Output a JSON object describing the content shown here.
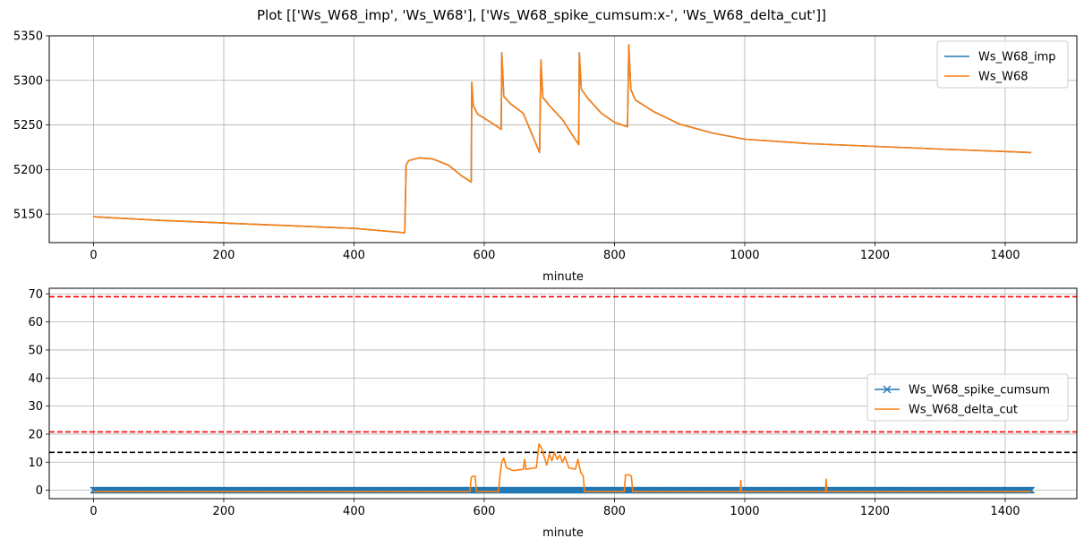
{
  "figure_title": "Plot [['Ws_W68_imp', 'Ws_W68'], ['Ws_W68_spike_cumsum:x-', 'Ws_W68_delta_cut']]",
  "chart_data": [
    {
      "type": "line",
      "xlabel": "minute",
      "ylabel": "",
      "xlim": [
        -68,
        1510
      ],
      "ylim": [
        5118,
        5350
      ],
      "xticks": [
        0,
        200,
        400,
        600,
        800,
        1000,
        1200,
        1400
      ],
      "yticks": [
        5150,
        5200,
        5250,
        5300,
        5350
      ],
      "grid": true,
      "legend_position": "top-right",
      "series": [
        {
          "name": "Ws_W68_imp",
          "color": "#1f77b4",
          "points": [
            [
              0,
              5147
            ],
            [
              100,
              5143
            ],
            [
              200,
              5140
            ],
            [
              300,
              5137
            ],
            [
              400,
              5134
            ],
            [
              478,
              5129
            ],
            [
              480,
              5205
            ],
            [
              484,
              5210
            ],
            [
              500,
              5213
            ],
            [
              520,
              5212
            ],
            [
              545,
              5205
            ],
            [
              565,
              5193
            ],
            [
              578,
              5187
            ],
            [
              580,
              5186
            ],
            [
              581,
              5298
            ],
            [
              583,
              5272
            ],
            [
              590,
              5262
            ],
            [
              610,
              5253
            ],
            [
              626,
              5245
            ],
            [
              627,
              5331
            ],
            [
              630,
              5282
            ],
            [
              640,
              5274
            ],
            [
              660,
              5263
            ],
            [
              685,
              5219
            ],
            [
              687,
              5323
            ],
            [
              690,
              5281
            ],
            [
              700,
              5272
            ],
            [
              720,
              5256
            ],
            [
              745,
              5228
            ],
            [
              746,
              5331
            ],
            [
              749,
              5290
            ],
            [
              760,
              5279
            ],
            [
              780,
              5263
            ],
            [
              800,
              5253
            ],
            [
              820,
              5248
            ],
            [
              822,
              5340
            ],
            [
              825,
              5290
            ],
            [
              832,
              5278
            ],
            [
              860,
              5265
            ],
            [
              900,
              5251
            ],
            [
              950,
              5241
            ],
            [
              1000,
              5234
            ],
            [
              1100,
              5229
            ],
            [
              1200,
              5226
            ],
            [
              1300,
              5223
            ],
            [
              1440,
              5219
            ]
          ]
        },
        {
          "name": "Ws_W68",
          "color": "#ff7f0e",
          "points": [
            [
              0,
              5147
            ],
            [
              100,
              5143
            ],
            [
              200,
              5140
            ],
            [
              300,
              5137
            ],
            [
              400,
              5134
            ],
            [
              478,
              5129
            ],
            [
              480,
              5205
            ],
            [
              484,
              5210
            ],
            [
              500,
              5213
            ],
            [
              520,
              5212
            ],
            [
              545,
              5205
            ],
            [
              565,
              5193
            ],
            [
              578,
              5187
            ],
            [
              580,
              5186
            ],
            [
              581,
              5298
            ],
            [
              583,
              5272
            ],
            [
              590,
              5262
            ],
            [
              610,
              5253
            ],
            [
              626,
              5245
            ],
            [
              627,
              5331
            ],
            [
              630,
              5282
            ],
            [
              640,
              5274
            ],
            [
              660,
              5263
            ],
            [
              685,
              5219
            ],
            [
              687,
              5323
            ],
            [
              690,
              5281
            ],
            [
              700,
              5272
            ],
            [
              720,
              5256
            ],
            [
              745,
              5228
            ],
            [
              746,
              5331
            ],
            [
              749,
              5290
            ],
            [
              760,
              5279
            ],
            [
              780,
              5263
            ],
            [
              800,
              5253
            ],
            [
              820,
              5248
            ],
            [
              822,
              5340
            ],
            [
              825,
              5290
            ],
            [
              832,
              5278
            ],
            [
              860,
              5265
            ],
            [
              900,
              5251
            ],
            [
              950,
              5241
            ],
            [
              1000,
              5234
            ],
            [
              1100,
              5229
            ],
            [
              1200,
              5226
            ],
            [
              1300,
              5223
            ],
            [
              1440,
              5219
            ]
          ]
        }
      ]
    },
    {
      "type": "line",
      "xlabel": "minute",
      "ylabel": "",
      "xlim": [
        -68,
        1510
      ],
      "ylim": [
        -3,
        72
      ],
      "xticks": [
        0,
        200,
        400,
        600,
        800,
        1000,
        1200,
        1400
      ],
      "yticks": [
        0,
        10,
        20,
        30,
        40,
        50,
        60,
        70
      ],
      "grid": true,
      "legend_position": "center-right",
      "hlines": [
        {
          "y": 69,
          "color": "#ff0000",
          "style": "dashed"
        },
        {
          "y": 20.8,
          "color": "#ff0000",
          "style": "dashed"
        },
        {
          "y": 13.5,
          "color": "#000000",
          "style": "dashed"
        }
      ],
      "series": [
        {
          "name": "Ws_W68_spike_cumsum",
          "color": "#1f77b4",
          "marker": "x",
          "x_range": [
            0,
            1440
          ],
          "value": 0
        },
        {
          "name": "Ws_W68_delta_cut",
          "color": "#ff7f0e",
          "points": [
            [
              0,
              -0.5
            ],
            [
              578,
              -0.5
            ],
            [
              580,
              4.5
            ],
            [
              582,
              5
            ],
            [
              586,
              5
            ],
            [
              588,
              -0.5
            ],
            [
              622,
              -0.5
            ],
            [
              624,
              5
            ],
            [
              627,
              10
            ],
            [
              630,
              11.5
            ],
            [
              634,
              8
            ],
            [
              645,
              7
            ],
            [
              660,
              7.5
            ],
            [
              662,
              11
            ],
            [
              664,
              7.5
            ],
            [
              680,
              8
            ],
            [
              684,
              16.5
            ],
            [
              688,
              15
            ],
            [
              692,
              12
            ],
            [
              696,
              9
            ],
            [
              700,
              13
            ],
            [
              704,
              10.5
            ],
            [
              708,
              13.5
            ],
            [
              712,
              11
            ],
            [
              716,
              12.5
            ],
            [
              720,
              10
            ],
            [
              724,
              12
            ],
            [
              730,
              8
            ],
            [
              740,
              7.5
            ],
            [
              744,
              11
            ],
            [
              748,
              6.5
            ],
            [
              752,
              5
            ],
            [
              754,
              -0.5
            ],
            [
              815,
              -0.5
            ],
            [
              817,
              5.5
            ],
            [
              822,
              5.5
            ],
            [
              826,
              5
            ],
            [
              828,
              -0.5
            ],
            [
              993,
              -0.5
            ],
            [
              994,
              3.5
            ],
            [
              995,
              -0.5
            ],
            [
              1124,
              -0.5
            ],
            [
              1125,
              4
            ],
            [
              1126,
              -0.5
            ],
            [
              1440,
              -0.5
            ]
          ]
        }
      ]
    }
  ]
}
